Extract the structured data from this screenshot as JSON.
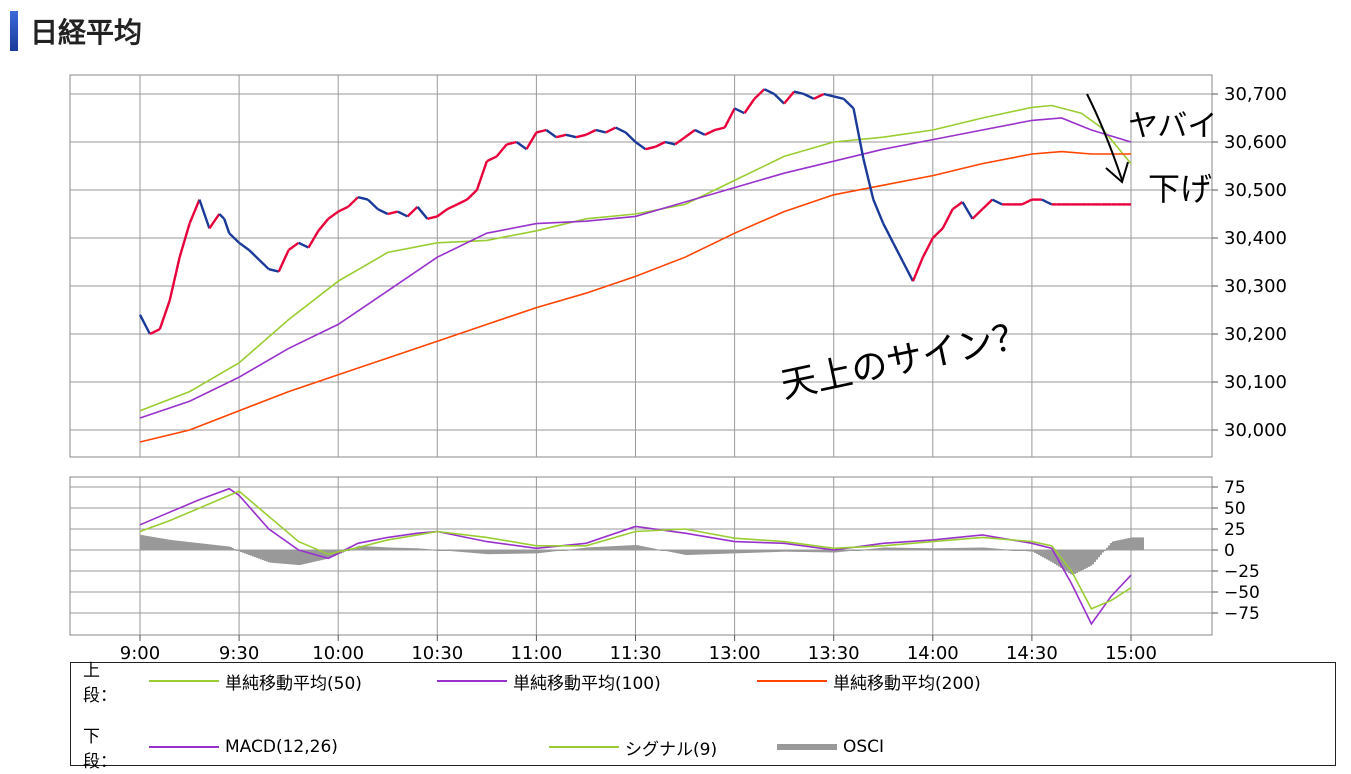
{
  "title": "日経平均",
  "colors": {
    "sma50": "#9acd32",
    "sma100": "#9932cc",
    "sma200": "#ff4500",
    "price_up": "#e8003a",
    "price_down": "#1a3a9a",
    "osci": "#999999",
    "grid": "#999999"
  },
  "chart_data": [
    {
      "type": "line",
      "panel": "upper",
      "x_ticks": [
        "9:00",
        "9:30",
        "10:00",
        "10:30",
        "11:00",
        "11:30",
        "13:00",
        "13:30",
        "14:00",
        "14:30",
        "15:00"
      ],
      "ylim": [
        29970,
        30730
      ],
      "y_ticks": [
        "30,700",
        "30,600",
        "30,500",
        "30,400",
        "30,300",
        "30,200",
        "30,100",
        "30,000"
      ],
      "y_tick_values": [
        30700,
        30600,
        30500,
        30400,
        30300,
        30200,
        30100,
        30000
      ],
      "grid": true,
      "series": [
        {
          "name": "単純移動平均(50)",
          "key": "sma50",
          "x": [
            0,
            0.5,
            1,
            1.5,
            2,
            2.5,
            3,
            3.5,
            4,
            4.5,
            5,
            5.5,
            6,
            6.5,
            7,
            7.5,
            8,
            8.5,
            9,
            9.2,
            9.5,
            9.7,
            10
          ],
          "values": [
            30040,
            30080,
            30140,
            30230,
            30310,
            30370,
            30390,
            30395,
            30415,
            30440,
            30450,
            30470,
            30520,
            30570,
            30600,
            30610,
            30625,
            30650,
            30672,
            30676,
            30660,
            30630,
            30555
          ]
        },
        {
          "name": "単純移動平均(100)",
          "key": "sma100",
          "x": [
            0,
            0.5,
            1,
            1.5,
            2,
            2.5,
            3,
            3.5,
            4,
            4.5,
            5,
            5.5,
            6,
            6.5,
            7,
            7.5,
            8,
            8.5,
            9,
            9.3,
            9.6,
            10
          ],
          "values": [
            30025,
            30060,
            30110,
            30170,
            30220,
            30290,
            30360,
            30410,
            30430,
            30435,
            30445,
            30475,
            30505,
            30535,
            30560,
            30585,
            30605,
            30625,
            30645,
            30650,
            30625,
            30600
          ]
        },
        {
          "name": "単純移動平均(200)",
          "key": "sma200",
          "x": [
            0,
            0.5,
            1,
            1.5,
            2,
            2.5,
            3,
            3.5,
            4,
            4.5,
            5,
            5.5,
            6,
            6.5,
            7,
            7.5,
            8,
            8.5,
            9,
            9.3,
            9.6,
            10
          ],
          "values": [
            29975,
            30000,
            30040,
            30080,
            30115,
            30150,
            30185,
            30220,
            30255,
            30285,
            30320,
            30360,
            30410,
            30455,
            30490,
            30510,
            30530,
            30555,
            30575,
            30580,
            30575,
            30575
          ]
        },
        {
          "name": "",
          "key": "price",
          "x": [
            0,
            0.1,
            0.2,
            0.3,
            0.4,
            0.5,
            0.6,
            0.7,
            0.8,
            0.85,
            0.9,
            1.0,
            1.1,
            1.2,
            1.3,
            1.4,
            1.5,
            1.6,
            1.7,
            1.8,
            1.9,
            2.0,
            2.1,
            2.2,
            2.3,
            2.4,
            2.5,
            2.6,
            2.7,
            2.8,
            2.9,
            3.0,
            3.1,
            3.2,
            3.3,
            3.4,
            3.5,
            3.6,
            3.7,
            3.8,
            3.9,
            4.0,
            4.1,
            4.2,
            4.3,
            4.4,
            4.5,
            4.6,
            4.7,
            4.8,
            4.9,
            5.0,
            5.1,
            5.2,
            5.3,
            5.4,
            5.5,
            5.6,
            5.7,
            5.8,
            5.9,
            6.0,
            6.1,
            6.2,
            6.3,
            6.4,
            6.5,
            6.6,
            6.7,
            6.8,
            6.9,
            7.0,
            7.1,
            7.2,
            7.3,
            7.4,
            7.5,
            7.6,
            7.7,
            7.8,
            7.9,
            8.0,
            8.1,
            8.2,
            8.3,
            8.4,
            8.5,
            8.6,
            8.7,
            8.8,
            8.9,
            9.0,
            9.1,
            9.2,
            9.25,
            9.3,
            9.4,
            9.5,
            9.55,
            9.6,
            9.7,
            9.8,
            9.85,
            9.9,
            9.95,
            10.0
          ],
          "values": [
            30240,
            30200,
            30210,
            30270,
            30360,
            30430,
            30480,
            30420,
            30450,
            30440,
            30410,
            30390,
            30375,
            30355,
            30335,
            30330,
            30375,
            30390,
            30380,
            30415,
            30440,
            30455,
            30465,
            30485,
            30480,
            30460,
            30450,
            30455,
            30445,
            30465,
            30440,
            30445,
            30460,
            30470,
            30480,
            30500,
            30560,
            30570,
            30595,
            30600,
            30585,
            30620,
            30625,
            30610,
            30615,
            30610,
            30615,
            30625,
            30620,
            30630,
            30620,
            30600,
            30585,
            30590,
            30600,
            30595,
            30610,
            30625,
            30615,
            30625,
            30630,
            30670,
            30660,
            30690,
            30710,
            30700,
            30680,
            30705,
            30700,
            30690,
            30700,
            30695,
            30690,
            30670,
            30565,
            30480,
            30430,
            30390,
            30350,
            30310,
            30360,
            30400,
            30420,
            30460,
            30475,
            30440,
            30460,
            30480,
            30470,
            30470,
            30470,
            30480,
            30480,
            30470,
            30470,
            30470,
            30470,
            30470,
            30470,
            30470,
            30470,
            30470,
            30470,
            30470,
            30470,
            30470
          ]
        }
      ]
    },
    {
      "type": "line",
      "panel": "lower",
      "x_ticks": [
        "9:00",
        "9:30",
        "10:00",
        "10:30",
        "11:00",
        "11:30",
        "13:00",
        "13:30",
        "14:00",
        "14:30",
        "15:00"
      ],
      "ylim": [
        -90,
        85
      ],
      "y_ticks": [
        "75",
        "50",
        "25",
        "0",
        "−25",
        "−50",
        "−75"
      ],
      "y_tick_values": [
        75,
        50,
        25,
        0,
        -25,
        -50,
        -75
      ],
      "grid": true,
      "series": [
        {
          "name": "MACD(12,26)",
          "key": "macd",
          "x": [
            0,
            0.3,
            0.6,
            0.9,
            1.0,
            1.3,
            1.6,
            1.9,
            2.2,
            2.5,
            2.8,
            3.0,
            3.5,
            4.0,
            4.5,
            5.0,
            5.5,
            6.0,
            6.5,
            7.0,
            7.5,
            8.0,
            8.5,
            9.0,
            9.2,
            9.4,
            9.6,
            9.8,
            10.0
          ],
          "values": [
            30,
            45,
            60,
            73,
            65,
            25,
            0,
            -10,
            8,
            15,
            20,
            22,
            10,
            2,
            8,
            28,
            20,
            10,
            8,
            0,
            8,
            12,
            18,
            8,
            2,
            -40,
            -88,
            -55,
            -30
          ]
        },
        {
          "name": "シグナル(9)",
          "key": "signal",
          "x": [
            0,
            0.3,
            0.6,
            0.9,
            1.0,
            1.3,
            1.6,
            1.9,
            2.2,
            2.5,
            2.8,
            3.0,
            3.5,
            4.0,
            4.5,
            5.0,
            5.5,
            6.0,
            6.5,
            7.0,
            7.5,
            8.0,
            8.5,
            9.0,
            9.2,
            9.4,
            9.6,
            9.8,
            10.0
          ],
          "values": [
            22,
            35,
            50,
            65,
            70,
            40,
            10,
            -5,
            3,
            12,
            18,
            22,
            15,
            5,
            5,
            22,
            25,
            14,
            10,
            2,
            5,
            10,
            15,
            10,
            5,
            -25,
            -70,
            -60,
            -45
          ]
        },
        {
          "name": "OSCI",
          "key": "osci",
          "x": [
            0,
            0.3,
            0.6,
            0.9,
            1.0,
            1.3,
            1.6,
            1.9,
            2.2,
            2.5,
            2.8,
            3.0,
            3.5,
            4.0,
            4.5,
            5.0,
            5.5,
            6.0,
            6.5,
            7.0,
            7.5,
            8.0,
            8.5,
            9.0,
            9.2,
            9.4,
            9.6,
            9.8,
            10.0
          ],
          "values": [
            18,
            12,
            8,
            4,
            -2,
            -15,
            -18,
            -10,
            5,
            3,
            2,
            0,
            -5,
            -4,
            3,
            6,
            -6,
            -4,
            -2,
            -3,
            3,
            2,
            3,
            -2,
            -15,
            -30,
            -18,
            10,
            15
          ]
        }
      ]
    }
  ],
  "annotations": [
    "ヤバイ",
    "下げ",
    "天上のサイン？"
  ],
  "legend": {
    "upper_label": "上段：",
    "upper_items": [
      "単純移動平均(50)",
      "単純移動平均(100)",
      "単純移動平均(200)"
    ],
    "lower_label": "下段：",
    "lower_items": [
      "MACD(12,26)",
      "シグナル(9)",
      "OSCI"
    ]
  }
}
